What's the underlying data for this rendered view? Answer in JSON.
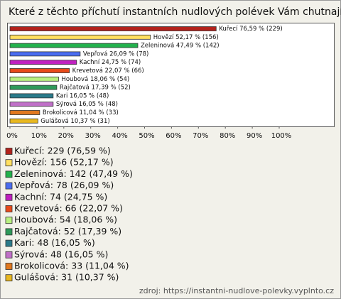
{
  "chart_data": {
    "type": "bar",
    "orientation": "horizontal",
    "title": "Které z těchto příchutí instantních nudlových polévek Vám chutnají?",
    "categories": [
      "Kuřecí",
      "Hovězí",
      "Zeleninová",
      "Vepřová",
      "Kachní",
      "Krevetová",
      "Houbová",
      "Rajčatová",
      "Kari",
      "Sýrová",
      "Brokolicová",
      "Gulášová"
    ],
    "values": [
      76.59,
      52.17,
      47.49,
      26.09,
      24.75,
      22.07,
      18.06,
      17.39,
      16.05,
      16.05,
      11.04,
      10.37
    ],
    "value_labels": [
      "Kuřecí 76,59 % (229)",
      "Hovězí 52,17 % (156)",
      "Zeleninová 47,49 % (142)",
      "Vepřová 26,09 % (78)",
      "Kachní 24,75 % (74)",
      "Krevetová 22,07 % (66)",
      "Houbová 18,06 % (54)",
      "Rajčatová 17,39 % (52)",
      "Kari 16,05 % (48)",
      "Sýrová 16,05 % (48)",
      "Brokolicová 11,04 % (33)",
      "Gulášová 10,37 % (31)"
    ],
    "legend_labels": [
      "Kuřecí: 229 (76,59 %)",
      "Hovězí: 156 (52,17 %)",
      "Zeleninová: 142 (47,49 %)",
      "Vepřová: 78 (26,09 %)",
      "Kachní: 74 (24,75 %)",
      "Krevetová: 66 (22,07 %)",
      "Houbová: 54 (18,06 %)",
      "Rajčatová: 52 (17,39 %)",
      "Kari: 48 (16,05 %)",
      "Sýrová: 48 (16,05 %)",
      "Brokolicová: 33 (11,04 %)",
      "Gulášová: 31 (10,37 %)"
    ],
    "colors": [
      "#b3221c",
      "#ffe060",
      "#22b14c",
      "#4a6cf0",
      "#c020c0",
      "#e84a1a",
      "#b8f080",
      "#2e9a5a",
      "#2a7a8a",
      "#c070c8",
      "#e07820",
      "#e8b820"
    ],
    "xlim": [
      0,
      100
    ],
    "xticks": [
      {
        "value": 0,
        "label": "0%"
      },
      {
        "value": 10,
        "label": "10%"
      },
      {
        "value": 20,
        "label": "20%"
      },
      {
        "value": 30,
        "label": "30%"
      },
      {
        "value": 40,
        "label": "40%"
      },
      {
        "value": 50,
        "label": "50%"
      },
      {
        "value": 60,
        "label": "60%"
      },
      {
        "value": 70,
        "label": "70%"
      },
      {
        "value": 80,
        "label": "80%"
      },
      {
        "value": 90,
        "label": "90%"
      },
      {
        "value": 100,
        "label": "100%"
      }
    ],
    "source": "zdroj: https://instantni-nudlove-polevky.vyplnto.cz"
  }
}
